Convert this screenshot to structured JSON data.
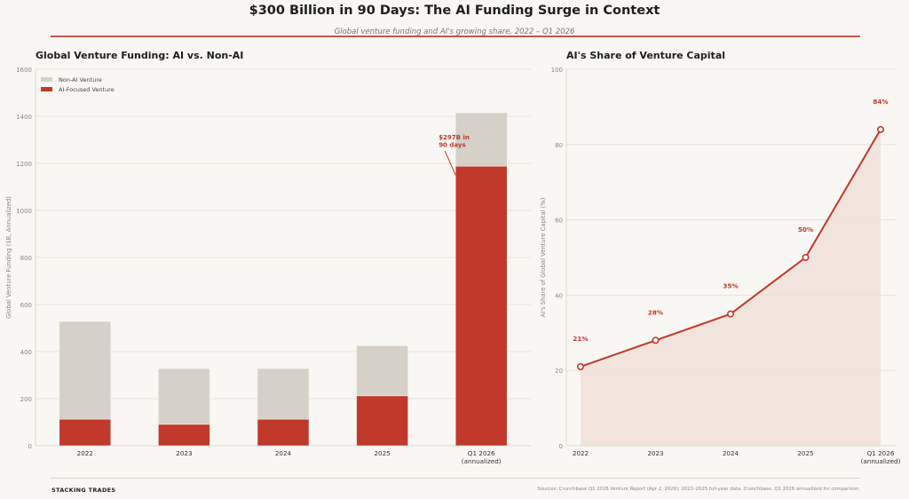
{
  "header": {
    "title": "$300 Billion in 90 Days: The AI Funding Surge in Context",
    "subtitle": "Global venture funding and AI's growing share, 2022 – Q1 2026"
  },
  "colors": {
    "ai": "#c0392b",
    "non_ai": "#d5d0c8",
    "area_fill": "#f1dfd8",
    "grid": "#e6e2dc",
    "background": "#f9f7f3"
  },
  "footer": {
    "brand": "STACKING TRADES",
    "sources": "Sources: Crunchbase Q1 2026 Venture Report (Apr 2, 2026); 2022–2025 full-year data, Crunchbase. Q1 2026 annualized for comparison."
  },
  "chart_data": [
    {
      "type": "bar",
      "stacked": true,
      "title": "Global Venture Funding: AI vs. Non-AI",
      "xlabel": "",
      "ylabel": "Global Venture Funding ($B, Annualized)",
      "ylim": [
        0,
        1600
      ],
      "yticks": [
        0,
        200,
        400,
        600,
        800,
        1000,
        1200,
        1400,
        1600
      ],
      "grid": true,
      "legend_position": "top-left",
      "categories": [
        "2022",
        "2023",
        "2024",
        "2025",
        "Q1 2026\n(annualized)"
      ],
      "category_labels": [
        [
          "2022"
        ],
        [
          "2023"
        ],
        [
          "2024"
        ],
        [
          "2025"
        ],
        [
          "Q1 2026",
          "(annualized)"
        ]
      ],
      "series": [
        {
          "name": "AI-Focused Venture",
          "values": [
            113,
            91,
            113,
            212,
            1188
          ]
        },
        {
          "name": "Non-AI Venture",
          "values": [
            415,
            237,
            215,
            213,
            227
          ]
        }
      ],
      "legend": [
        "Non-AI Venture",
        "AI-Focused Venture"
      ],
      "annotation": {
        "text": [
          "$297B in",
          "90 days"
        ],
        "target_category": "Q1 2026\n(annualized)",
        "target_value": 1188
      }
    },
    {
      "type": "area",
      "title": "AI's Share of Venture Capital",
      "xlabel": "",
      "ylabel": "AI's Share of Global Venture Capital (%)",
      "ylim": [
        0,
        100
      ],
      "yticks": [
        0,
        20,
        40,
        60,
        80,
        100
      ],
      "grid": true,
      "categories": [
        "2022",
        "2023",
        "2024",
        "2025",
        "Q1 2026\n(annualized)"
      ],
      "category_labels": [
        [
          "2022"
        ],
        [
          "2023"
        ],
        [
          "2024"
        ],
        [
          "2025"
        ],
        [
          "Q1 2026",
          "(annualized)"
        ]
      ],
      "series": [
        {
          "name": "AI Share",
          "values": [
            21,
            28,
            35,
            50,
            84
          ]
        }
      ],
      "data_labels": [
        "21%",
        "28%",
        "35%",
        "50%",
        "84%"
      ]
    }
  ]
}
